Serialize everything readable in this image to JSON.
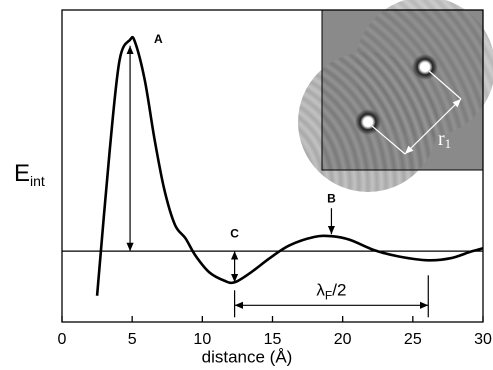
{
  "chart_data": {
    "type": "line",
    "xlabel": "distance (Å)",
    "ylabel": {
      "main": "E",
      "sub": "int"
    },
    "x": [
      2.5,
      3.4,
      4.1,
      4.85,
      5.2,
      5.9,
      6.6,
      7.3,
      8.05,
      8.8,
      9.5,
      10.5,
      11.6,
      12.3,
      13.4,
      14.8,
      16.2,
      18.0,
      19.2,
      20.5,
      22.3,
      24.1,
      26.1,
      27.7,
      29.1,
      30
    ],
    "series": [
      {
        "color": "#000000",
        "values": [
          -0.63,
          1.42,
          2.69,
          2.98,
          2.95,
          2.41,
          1.57,
          0.86,
          0.37,
          0.18,
          -0.06,
          -0.3,
          -0.42,
          -0.44,
          -0.31,
          -0.1,
          0.08,
          0.2,
          0.21,
          0.16,
          0.01,
          -0.08,
          -0.13,
          -0.1,
          -0.01,
          0.04
        ]
      }
    ],
    "xlim": [
      0,
      30
    ],
    "ylim": [
      -1,
      3.4
    ],
    "xticks": [
      0,
      5,
      10,
      15,
      20,
      25,
      30
    ],
    "reference_line": 0,
    "annotations": {
      "A": "A",
      "B": "B",
      "C": "C",
      "lambda": {
        "main": "λ",
        "sub": "F",
        "rest": "/2"
      }
    },
    "inset_label": {
      "main": "r",
      "sub": "1"
    }
  }
}
